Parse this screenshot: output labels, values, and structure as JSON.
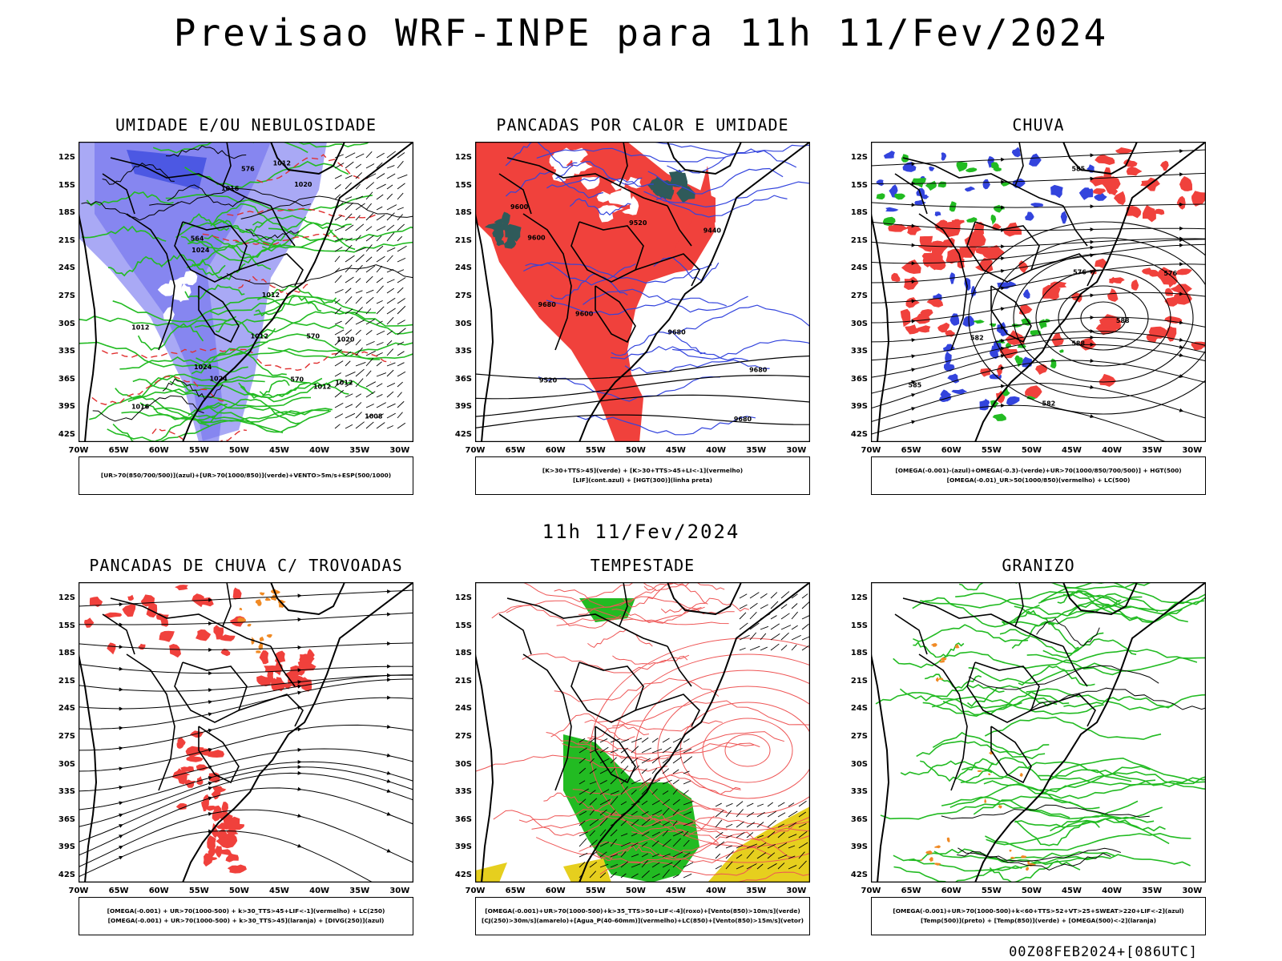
{
  "header": {
    "title": "Previsao WRF-INPE  para 11h 11/Fev/2024",
    "mid_title": "11h 11/Fev/2024",
    "footer": "00Z08FEB2024+[086UTC]"
  },
  "axes": {
    "lat_labels": [
      "12S",
      "15S",
      "18S",
      "21S",
      "24S",
      "27S",
      "30S",
      "33S",
      "36S",
      "39S",
      "42S"
    ],
    "lon_labels": [
      "70W",
      "65W",
      "60W",
      "55W",
      "50W",
      "45W",
      "40W",
      "35W",
      "30W"
    ]
  },
  "colors": {
    "red": "#f0413c",
    "blue": "#3344dd",
    "green": "#22bb22",
    "lightblue": "#a9a9f5",
    "midblue": "#7777ee",
    "darkteal": "#2f5a5a",
    "yellow": "#e6cf1e",
    "orange": "#f08a24",
    "black": "#000000"
  },
  "panels": [
    {
      "id": "umidade",
      "title": "UMIDADE E/OU NEBULOSIDADE",
      "legend": [
        "[UR>70(850/700/500)](azul)+[UR>70(1000/850)](verde)+VENTO>5m/s+ESP(500/1000)"
      ],
      "contour_labels": [
        "1016",
        "1020",
        "1012",
        "1012",
        "1016",
        "1012",
        "1012",
        "1020",
        "1012",
        "1024",
        "1008",
        "1024",
        "1024",
        "576",
        "570",
        "564",
        "570",
        "1012"
      ]
    },
    {
      "id": "pancadas-calor",
      "title": "PANCADAS POR CALOR E UMIDADE",
      "legend": [
        "[K>30+TTS>45](verde) + [K>30+TTS>45+LI<-1](vermelho)",
        "[LIF](cont.azul) + [HGT(300)](linha preta)"
      ],
      "contour_labels": [
        "9680",
        "9680",
        "9680",
        "9600",
        "9680",
        "9600",
        "9520",
        "9600",
        "9440",
        "9520"
      ]
    },
    {
      "id": "chuva",
      "title": "CHUVA",
      "legend": [
        "[OMEGA(-0.001)-(azul)+OMEGA(-0.3)-(verde)+UR>70(1000/850/700/500)] + HGT(500)",
        "[OMEGA(-0.01)_UR>50(1000/850)(vermelho) + LC(500)"
      ],
      "contour_labels": [
        "588",
        "585",
        "582",
        "576",
        "576",
        "588",
        "585",
        "582"
      ]
    },
    {
      "id": "pancadas-trovoadas",
      "title": "PANCADAS DE CHUVA C/ TROVOADAS",
      "legend": [
        "[OMEGA(-0.001) + UR>70(1000-500) + k>30_TTS>45+LIF<-1](vermelho) + LC(250)",
        "[OMEGA(-0.001) + UR>70(1000-500) + k>30_TTS>45](laranja) + [DIVG(250)](azul)"
      ],
      "contour_labels": []
    },
    {
      "id": "tempestade",
      "title": "TEMPESTADE",
      "legend": [
        "[OMEGA(-0.001)+UR>70(1000-500)+k>35_TTS>50+LIF<-4](roxo)+[Vento(850)>10m/s](verde)",
        "[CJ(250)>30m/s](amarelo)+[Agua_P(40-60mm)](vermelho)+LC(850)+[Vento(850)>15m/s](vetor)"
      ],
      "contour_labels": []
    },
    {
      "id": "granizo",
      "title": "GRANIZO",
      "legend": [
        "[OMEGA(-0.001)+UR>70(1000-500)+k<60+TTS>52+VT>25+SWEAT>220+LIF<-2](azul)",
        "[Temp(500)](preto) + [Temp(850)](verde) + [OMEGA(500)<-2](laranja)"
      ],
      "contour_labels": []
    }
  ]
}
